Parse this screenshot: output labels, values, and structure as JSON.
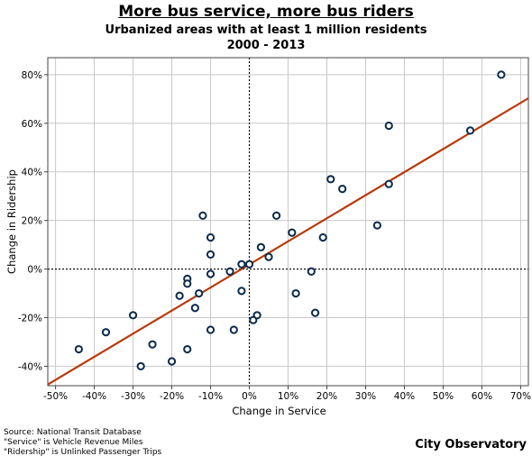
{
  "chart_data": {
    "type": "scatter",
    "title": "More bus service, more bus riders",
    "subtitle": "Urbanized areas with at least 1 million residents",
    "period": "2000 - 2013",
    "xlabel": "Change in Service",
    "ylabel": "Change in Ridership",
    "xlim": [
      -52,
      72
    ],
    "ylim": [
      -48,
      87
    ],
    "x_ticks": [
      -50,
      -40,
      -30,
      -20,
      -10,
      0,
      10,
      20,
      30,
      40,
      50,
      60,
      70
    ],
    "x_tick_labels": [
      "-50%",
      "-40%",
      "-30%",
      "-20%",
      "-10%",
      "0%",
      "10%",
      "20%",
      "30%",
      "40%",
      "50%",
      "60%",
      "70%"
    ],
    "y_ticks": [
      -40,
      -20,
      0,
      20,
      40,
      60,
      80
    ],
    "y_tick_labels": [
      "-40%",
      "-20%",
      "0%",
      "20%",
      "40%",
      "60%",
      "80%"
    ],
    "grid": true,
    "zero_lines": "dotted",
    "trendline": {
      "x": [
        -52,
        72
      ],
      "y": [
        -47.5,
        70.3
      ],
      "color": "#b83a0d"
    },
    "point_color": "#0b2a4a",
    "points": [
      {
        "x": 65,
        "y": 80
      },
      {
        "x": 36,
        "y": 59
      },
      {
        "x": 57,
        "y": 57
      },
      {
        "x": 36,
        "y": 35
      },
      {
        "x": 21,
        "y": 37
      },
      {
        "x": 24,
        "y": 33
      },
      {
        "x": 33,
        "y": 18
      },
      {
        "x": 7,
        "y": 22
      },
      {
        "x": -12,
        "y": 22
      },
      {
        "x": 11,
        "y": 15
      },
      {
        "x": 19,
        "y": 13
      },
      {
        "x": -10,
        "y": 13
      },
      {
        "x": 3,
        "y": 9
      },
      {
        "x": -10,
        "y": 6
      },
      {
        "x": 5,
        "y": 5
      },
      {
        "x": -2,
        "y": 2
      },
      {
        "x": 0,
        "y": 2
      },
      {
        "x": -5,
        "y": -1
      },
      {
        "x": -10,
        "y": -2
      },
      {
        "x": 16,
        "y": -1
      },
      {
        "x": -16,
        "y": -4
      },
      {
        "x": -16,
        "y": -6
      },
      {
        "x": -2,
        "y": -9
      },
      {
        "x": -13,
        "y": -10
      },
      {
        "x": 12,
        "y": -10
      },
      {
        "x": -18,
        "y": -11
      },
      {
        "x": -14,
        "y": -16
      },
      {
        "x": 17,
        "y": -18
      },
      {
        "x": 2,
        "y": -19
      },
      {
        "x": -30,
        "y": -19
      },
      {
        "x": 1,
        "y": -21
      },
      {
        "x": -4,
        "y": -25
      },
      {
        "x": -10,
        "y": -25
      },
      {
        "x": -37,
        "y": -26
      },
      {
        "x": -25,
        "y": -31
      },
      {
        "x": -16,
        "y": -33
      },
      {
        "x": -44,
        "y": -33
      },
      {
        "x": -20,
        "y": -38
      },
      {
        "x": -28,
        "y": -40
      }
    ]
  },
  "footer": {
    "source_lines": [
      "Source: National Transit Database",
      "\"Service\" is Vehicle Revenue Miles",
      "\"Ridership\" is Unlinked Passenger Trips"
    ],
    "brand": "City Observatory"
  }
}
